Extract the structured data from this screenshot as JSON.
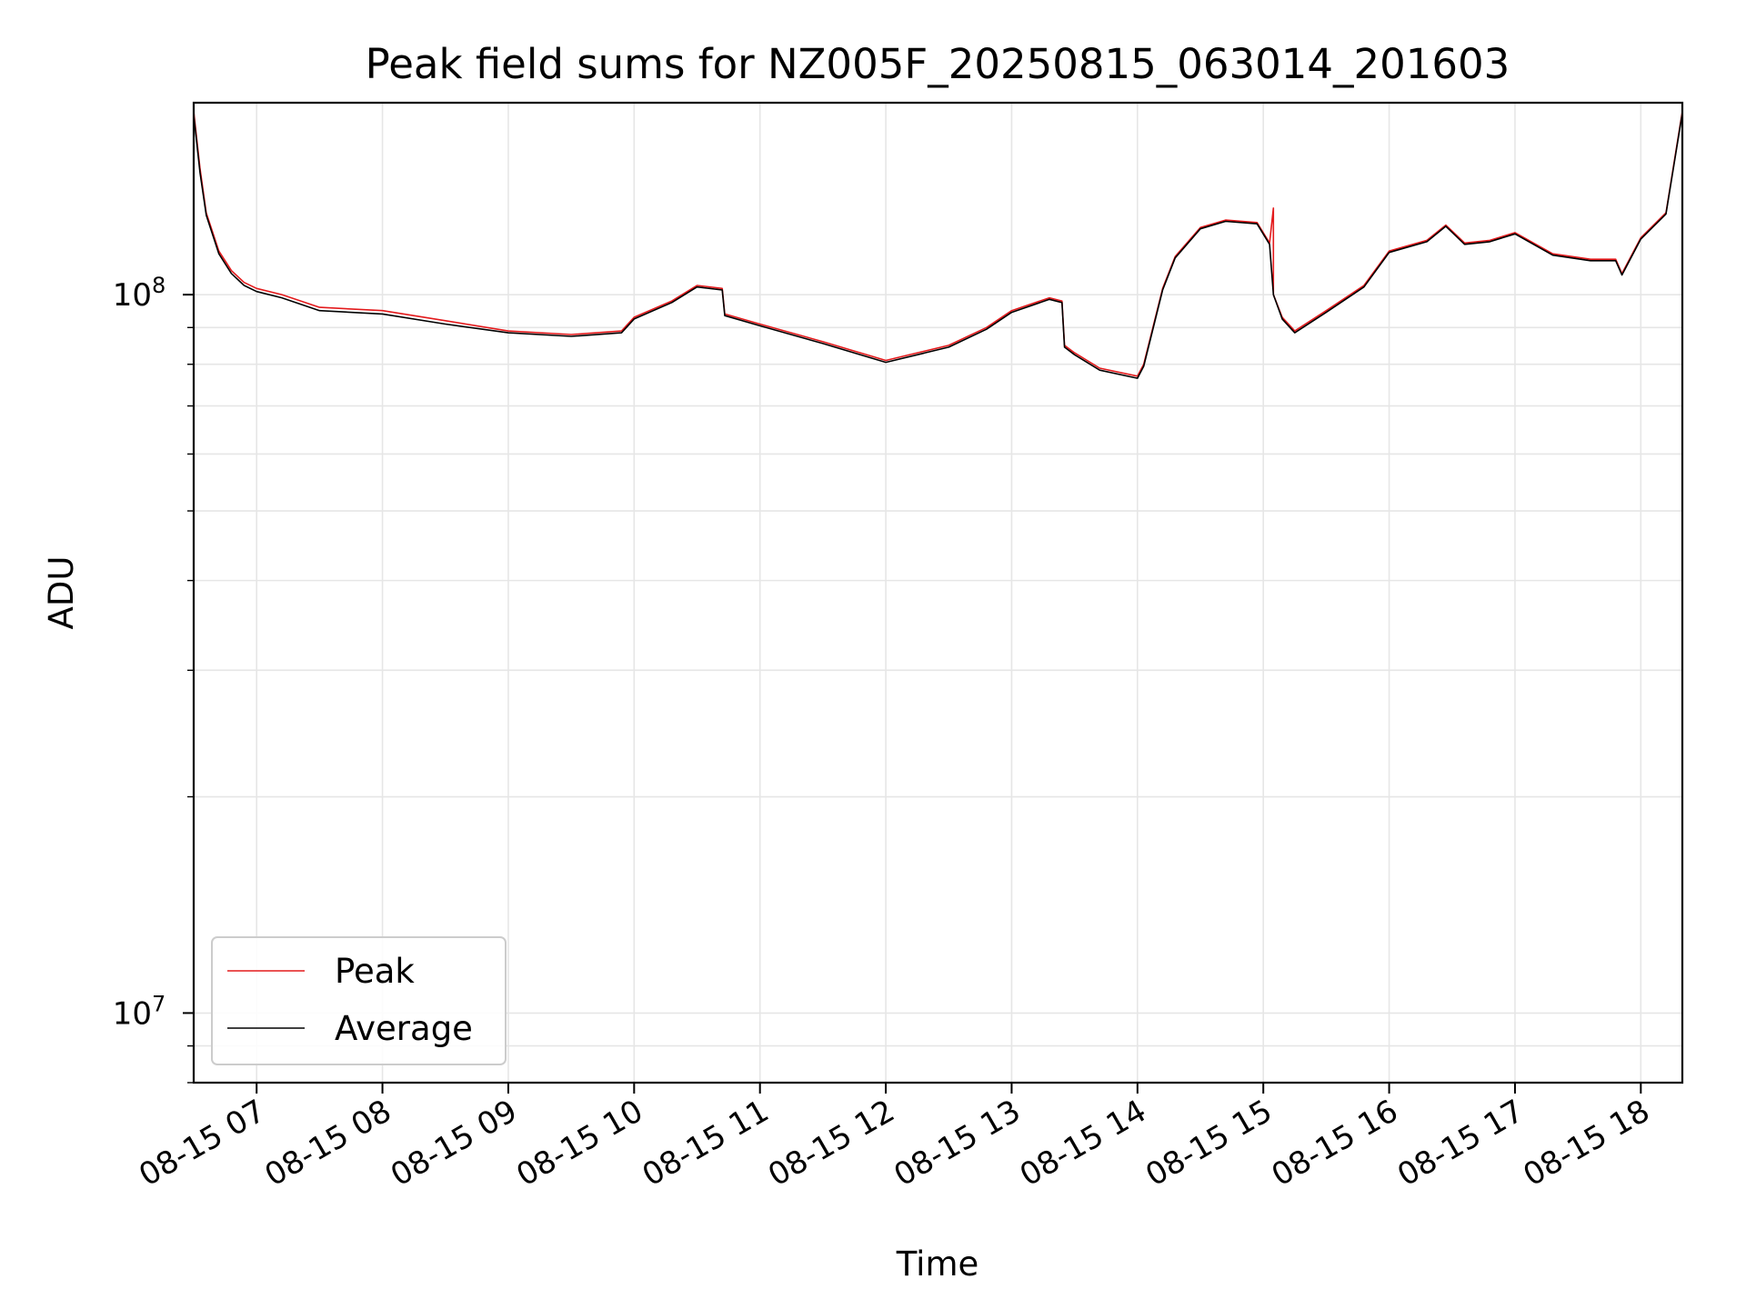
{
  "chart_data": {
    "type": "line",
    "title": "Peak field sums for NZ005F_20250815_063014_201603",
    "xlabel": "Time",
    "ylabel": "ADU",
    "x_unit": "hour of day, 2025-08-15",
    "xlim": [
      6.5,
      18.33
    ],
    "ylim": [
      8000000,
      185000000
    ],
    "yscale": "log",
    "grid": true,
    "legend_placement": "lower-left",
    "x_ticks": [
      7,
      8,
      9,
      10,
      11,
      12,
      13,
      14,
      15,
      16,
      17,
      18
    ],
    "x_tick_labels": [
      "08-15 07",
      "08-15 08",
      "08-15 09",
      "08-15 10",
      "08-15 11",
      "08-15 12",
      "08-15 13",
      "08-15 14",
      "08-15 15",
      "08-15 16",
      "08-15 17",
      "08-15 18"
    ],
    "y_major_ticks": [
      {
        "value": 10000000,
        "base": "10",
        "exp": "7"
      },
      {
        "value": 100000000,
        "base": "10",
        "exp": "8"
      }
    ],
    "series": [
      {
        "name": "Peak",
        "color": "#e31a1c",
        "x": [
          6.5,
          6.55,
          6.6,
          6.7,
          6.8,
          6.9,
          7.0,
          7.2,
          7.5,
          8.0,
          8.5,
          9.0,
          9.5,
          9.9,
          10.0,
          10.3,
          10.5,
          10.7,
          10.72,
          11.0,
          11.5,
          12.0,
          12.5,
          12.8,
          13.0,
          13.3,
          13.4,
          13.42,
          13.5,
          13.7,
          14.0,
          14.05,
          14.2,
          14.3,
          14.5,
          14.7,
          14.95,
          15.05,
          15.08,
          15.08,
          15.15,
          15.25,
          15.5,
          15.8,
          16.0,
          16.3,
          16.45,
          16.6,
          16.8,
          17.0,
          17.3,
          17.6,
          17.8,
          17.85,
          18.0,
          18.2,
          18.33
        ],
        "y": [
          180000000,
          150000000,
          130000000,
          115000000,
          108000000,
          104000000,
          102000000,
          100000000,
          96000000,
          95000000,
          92000000,
          89000000,
          88000000,
          89000000,
          93000000,
          98000000,
          103000000,
          102000000,
          94000000,
          91000000,
          86000000,
          81000000,
          85000000,
          90000000,
          95000000,
          99000000,
          98000000,
          85000000,
          83000000,
          79000000,
          77000000,
          80000000,
          102000000,
          113000000,
          124000000,
          127000000,
          126000000,
          118000000,
          132000000,
          100000000,
          93000000,
          89000000,
          95000000,
          103000000,
          115000000,
          119000000,
          125000000,
          118000000,
          119000000,
          122000000,
          114000000,
          112000000,
          112000000,
          107000000,
          120000000,
          130000000,
          180000000
        ]
      },
      {
        "name": "Average",
        "color": "#000000",
        "x": [
          6.5,
          6.55,
          6.6,
          6.7,
          6.8,
          6.9,
          7.0,
          7.2,
          7.5,
          8.0,
          8.5,
          9.0,
          9.5,
          9.9,
          10.0,
          10.3,
          10.5,
          10.7,
          10.72,
          11.0,
          11.5,
          12.0,
          12.5,
          12.8,
          13.0,
          13.3,
          13.4,
          13.42,
          13.5,
          13.7,
          14.0,
          14.05,
          14.2,
          14.3,
          14.5,
          14.7,
          14.95,
          15.05,
          15.08,
          15.15,
          15.25,
          15.5,
          15.8,
          16.0,
          16.3,
          16.45,
          16.6,
          16.8,
          17.0,
          17.3,
          17.6,
          17.8,
          17.85,
          18.0,
          18.2,
          18.33
        ],
        "y": [
          178000000,
          148000000,
          129000000,
          114000000,
          107000000,
          103000000,
          101000000,
          99000000,
          95000000,
          94000000,
          91000000,
          88500000,
          87500000,
          88500000,
          92500000,
          97500000,
          102500000,
          101500000,
          93500000,
          90500000,
          85500000,
          80500000,
          84500000,
          89500000,
          94500000,
          98500000,
          97500000,
          84500000,
          82500000,
          78500000,
          76500000,
          79500000,
          101500000,
          112500000,
          123500000,
          126500000,
          125500000,
          117500000,
          100000000,
          92500000,
          88500000,
          94500000,
          102500000,
          114500000,
          118500000,
          124500000,
          117500000,
          118500000,
          121500000,
          113500000,
          111500000,
          111500000,
          106500000,
          119500000,
          129500000,
          179000000
        ]
      }
    ]
  }
}
